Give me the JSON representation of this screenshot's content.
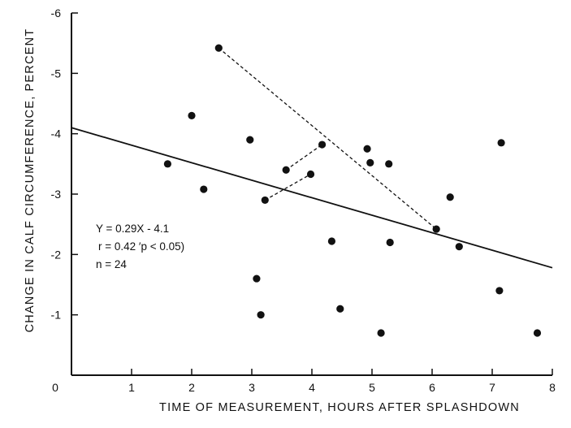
{
  "chart_data": {
    "type": "scatter",
    "xlabel": "TIME OF MEASUREMENT, HOURS AFTER SPLASHDOWN",
    "ylabel": "CHANGE IN CALF CIRCUMFERENCE, PERCENT",
    "xlim": [
      0,
      8
    ],
    "ylim": [
      0,
      -6
    ],
    "x_ticks": [
      {
        "value": 0,
        "label": "0"
      },
      {
        "value": 1,
        "label": "1"
      },
      {
        "value": 2,
        "label": "2"
      },
      {
        "value": 3,
        "label": "3"
      },
      {
        "value": 4,
        "label": "4"
      },
      {
        "value": 5,
        "label": "5"
      },
      {
        "value": 6,
        "label": "6"
      },
      {
        "value": 7,
        "label": "7"
      },
      {
        "value": 8,
        "label": "8"
      }
    ],
    "y_ticks": [
      {
        "value": -1,
        "label": "-1"
      },
      {
        "value": -2,
        "label": "-2"
      },
      {
        "value": -3,
        "label": "-3"
      },
      {
        "value": -4,
        "label": "-4"
      },
      {
        "value": -5,
        "label": "-5"
      },
      {
        "value": -6,
        "label": "-6"
      }
    ],
    "grid": false,
    "points": [
      {
        "x": 1.6,
        "y": -3.5
      },
      {
        "x": 2.0,
        "y": -4.3
      },
      {
        "x": 2.2,
        "y": -3.08
      },
      {
        "x": 2.45,
        "y": -5.42
      },
      {
        "x": 2.97,
        "y": -3.9
      },
      {
        "x": 3.08,
        "y": -1.6
      },
      {
        "x": 3.15,
        "y": -1.0
      },
      {
        "x": 3.22,
        "y": -2.9
      },
      {
        "x": 3.57,
        "y": -3.4
      },
      {
        "x": 3.98,
        "y": -3.33
      },
      {
        "x": 4.17,
        "y": -3.82
      },
      {
        "x": 4.33,
        "y": -2.22
      },
      {
        "x": 4.47,
        "y": -1.1
      },
      {
        "x": 4.92,
        "y": -3.75
      },
      {
        "x": 4.97,
        "y": -3.52
      },
      {
        "x": 5.15,
        "y": -0.7
      },
      {
        "x": 5.28,
        "y": -3.5
      },
      {
        "x": 5.3,
        "y": -2.2
      },
      {
        "x": 6.07,
        "y": -2.42
      },
      {
        "x": 6.3,
        "y": -2.95
      },
      {
        "x": 6.45,
        "y": -2.13
      },
      {
        "x": 7.12,
        "y": -1.4
      },
      {
        "x": 7.15,
        "y": -3.85
      },
      {
        "x": 7.75,
        "y": -0.7
      }
    ],
    "regression": {
      "slope": 0.29,
      "intercept": -4.1,
      "x_range": [
        0,
        8
      ]
    },
    "dashed_links": [
      [
        {
          "x": 2.45,
          "y": -5.42
        },
        {
          "x": 6.07,
          "y": -2.42
        }
      ],
      [
        {
          "x": 3.57,
          "y": -3.4
        },
        {
          "x": 4.17,
          "y": -3.82
        }
      ],
      [
        {
          "x": 3.22,
          "y": -2.9
        },
        {
          "x": 3.98,
          "y": -3.33
        }
      ]
    ],
    "annotations": [
      "Y = 0.29X - 4.1",
      "r = 0.42 ′p < 0.05)",
      "n = 24"
    ]
  }
}
